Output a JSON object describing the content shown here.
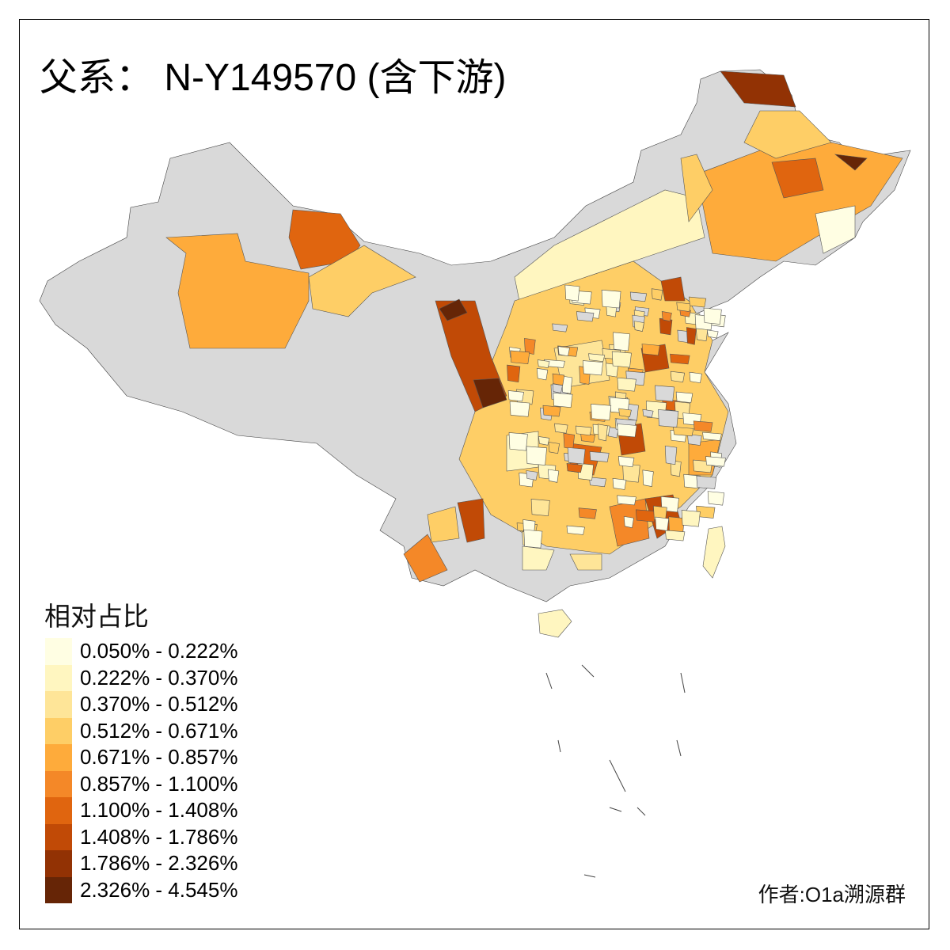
{
  "title": "父系： N-Y149570 (含下游)",
  "legend": {
    "title": "相对占比",
    "classes": [
      {
        "label": "0.050% - 0.222%",
        "color": "#FFFEE3"
      },
      {
        "label": "0.222% - 0.370%",
        "color": "#FFF6C0"
      },
      {
        "label": "0.370% - 0.512%",
        "color": "#FEE598"
      },
      {
        "label": "0.512% - 0.671%",
        "color": "#FECE66"
      },
      {
        "label": "0.671% - 0.857%",
        "color": "#FEAB3B"
      },
      {
        "label": "0.857% - 1.100%",
        "color": "#F48828"
      },
      {
        "label": "1.100% - 1.408%",
        "color": "#E0650F"
      },
      {
        "label": "1.408% - 1.786%",
        "color": "#C14A06"
      },
      {
        "label": "1.786% - 2.326%",
        "color": "#923204"
      },
      {
        "label": "2.326% - 4.545%",
        "color": "#662506"
      }
    ]
  },
  "no_data_color": "#D9D9D9",
  "author": "作者:O1a溯源群"
}
